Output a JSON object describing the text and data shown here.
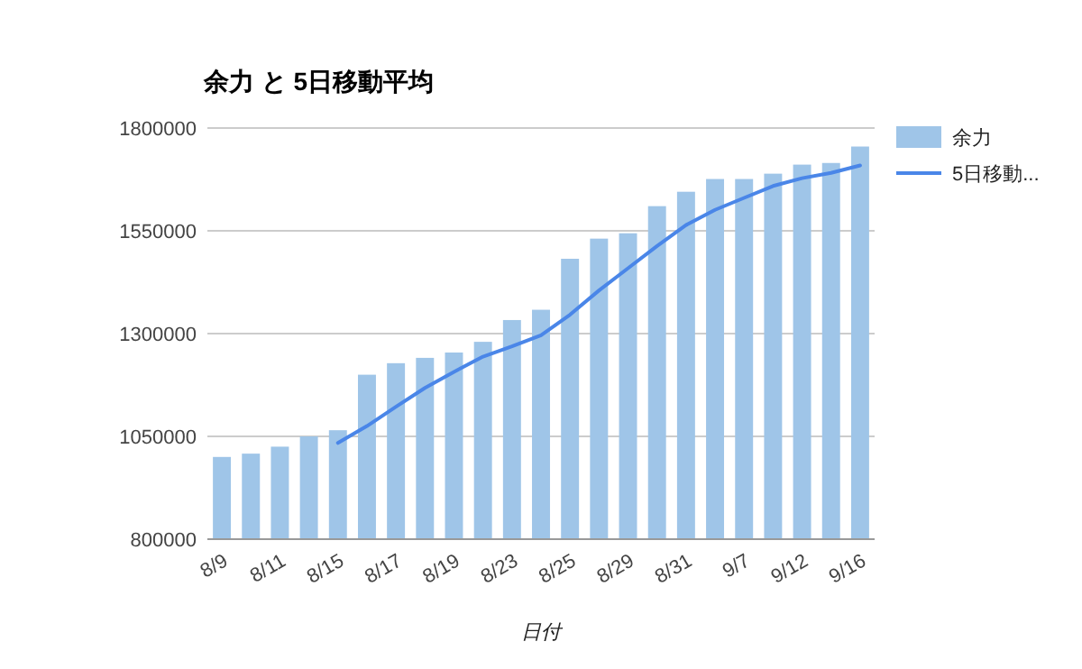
{
  "chart_data": {
    "type": "bar",
    "title": "余力 と 5日移動平均",
    "xlabel": "日付",
    "categories": [
      "8/9",
      null,
      "8/11",
      null,
      "8/15",
      null,
      "8/17",
      null,
      "8/19",
      null,
      "8/23",
      null,
      "8/25",
      null,
      "8/29",
      null,
      "8/31",
      null,
      "9/7",
      null,
      "9/12",
      null,
      "9/16"
    ],
    "series": [
      {
        "name": "余力",
        "color": "#9fc5e8",
        "values": [
          1000000,
          1008000,
          1025000,
          1050000,
          1065000,
          1200000,
          1228000,
          1241000,
          1254000,
          1280000,
          1333000,
          1358000,
          1482000,
          1531000,
          1544000,
          1610000,
          1645000,
          1676000,
          1676000,
          1689000,
          1711000,
          1715000,
          1755000
        ]
      },
      {
        "name": "5日移動...",
        "type": "line",
        "color": "#4a86e8",
        "values": [
          null,
          null,
          null,
          null,
          1034000,
          1075000,
          1122000,
          1168000,
          1207000,
          1244000,
          1269000,
          1296000,
          1346000,
          1405000,
          1459000,
          1513000,
          1564000,
          1601000,
          1630000,
          1659000,
          1678000,
          1691000,
          1709000
        ]
      }
    ],
    "ylim": [
      800000,
      1800000
    ],
    "yticks": [
      800000,
      1050000,
      1300000,
      1550000,
      1800000
    ],
    "grid": "y",
    "legend": "right"
  }
}
